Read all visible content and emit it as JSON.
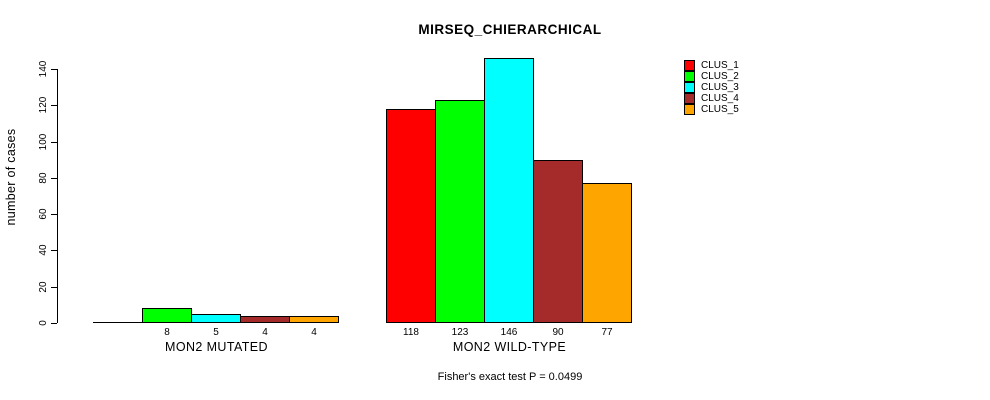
{
  "chart_data": {
    "type": "bar",
    "title": "MIRSEQ_CHIERARCHICAL",
    "ylabel": "number of cases",
    "xlabel": "",
    "footer": "Fisher's exact test P = 0.0499",
    "ylim": [
      0,
      140
    ],
    "y_ticks": [
      0,
      20,
      40,
      60,
      80,
      100,
      120,
      140
    ],
    "grid": false,
    "legend_position": "right",
    "background_color": "#ffffff",
    "axis_color": "#000000",
    "series": [
      {
        "name": "CLUS_1",
        "color": "#FF0000"
      },
      {
        "name": "CLUS_2",
        "color": "#00FF00"
      },
      {
        "name": "CLUS_3",
        "color": "#00FFFF"
      },
      {
        "name": "CLUS_4",
        "color": "#A52A2A"
      },
      {
        "name": "CLUS_5",
        "color": "#FFA500"
      }
    ],
    "categories": [
      "MON2 MUTATED",
      "MON2 WILD-TYPE"
    ],
    "groups": [
      {
        "label": "MON2 MUTATED",
        "values": [
          0,
          8,
          5,
          4,
          4
        ],
        "bar_labels": [
          "",
          "8",
          "5",
          "4",
          "4"
        ]
      },
      {
        "label": "MON2 WILD-TYPE",
        "values": [
          118,
          123,
          146,
          90,
          77
        ],
        "bar_labels": [
          "118",
          "123",
          "146",
          "90",
          "77"
        ]
      }
    ]
  }
}
